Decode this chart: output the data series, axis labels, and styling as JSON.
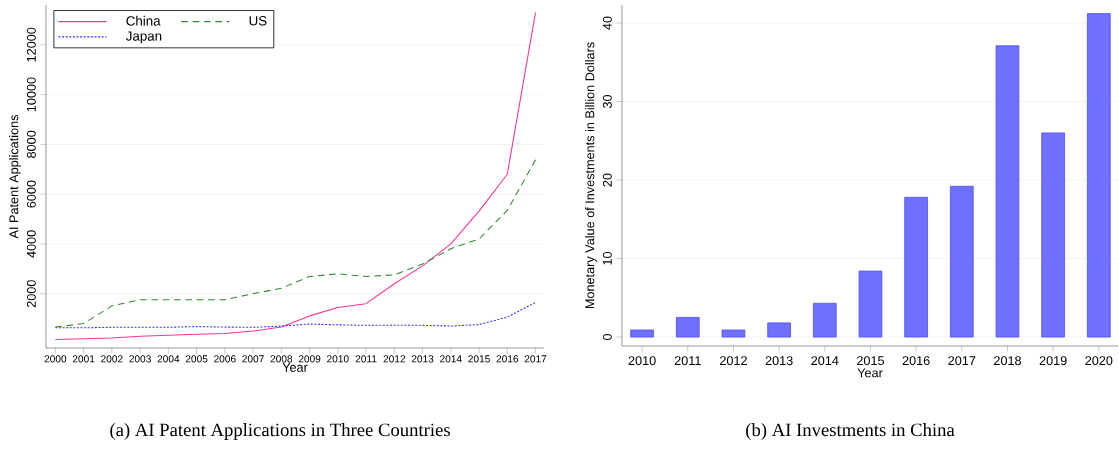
{
  "chart_data": [
    {
      "type": "line",
      "xlabel": "Year",
      "ylabel": "AI Patent Applications",
      "annotations": [
        "(a) AI Patent Applications in Three Countries"
      ],
      "x": [
        2000,
        2001,
        2002,
        2003,
        2004,
        2005,
        2006,
        2007,
        2008,
        2009,
        2010,
        2011,
        2012,
        2013,
        2014,
        2015,
        2016,
        2017
      ],
      "series": [
        {
          "name": "China",
          "color": "#ff3399",
          "line_style": "solid",
          "values": [
            160,
            190,
            220,
            290,
            330,
            370,
            400,
            500,
            660,
            1110,
            1450,
            1600,
            2400,
            3120,
            4000,
            5320,
            6800,
            13300
          ]
        },
        {
          "name": "US",
          "color": "#2e8b2e",
          "line_style": "dashed",
          "values": [
            660,
            800,
            1510,
            1760,
            1760,
            1760,
            1760,
            2000,
            2220,
            2690,
            2800,
            2690,
            2760,
            3190,
            3810,
            4200,
            5350,
            7380
          ]
        },
        {
          "name": "Japan",
          "color": "#3333ff",
          "line_style": "dotted",
          "values": [
            630,
            630,
            650,
            650,
            650,
            680,
            660,
            650,
            700,
            780,
            750,
            730,
            730,
            730,
            700,
            760,
            1060,
            1650
          ]
        }
      ],
      "xlim": [
        1999.67,
        2017.3
      ],
      "ylim": [
        -180,
        13600
      ],
      "xticks": [
        2000,
        2001,
        2002,
        2003,
        2004,
        2005,
        2006,
        2007,
        2008,
        2009,
        2010,
        2011,
        2012,
        2013,
        2014,
        2015,
        2016,
        2017
      ],
      "yticks": [
        2000,
        4000,
        6000,
        8000,
        10000,
        12000
      ],
      "grid": "y",
      "legend": "top left"
    },
    {
      "type": "bar",
      "xlabel": "Year",
      "ylabel": "Monetary Value of Investments in Billion Dollars",
      "annotations": [
        "(b) AI Investments in China"
      ],
      "categories": [
        "2010",
        "2011",
        "2012",
        "2013",
        "2014",
        "2015",
        "2016",
        "2017",
        "2018",
        "2019",
        "2020"
      ],
      "values": [
        0.9,
        2.5,
        0.9,
        1.8,
        4.3,
        8.4,
        17.8,
        19.2,
        37.1,
        26,
        41.2
      ],
      "color": "#7070ff",
      "ylim": [
        -1.14,
        42.3
      ],
      "yticks": [
        0,
        10,
        20,
        30,
        40
      ],
      "grid": "y"
    }
  ]
}
